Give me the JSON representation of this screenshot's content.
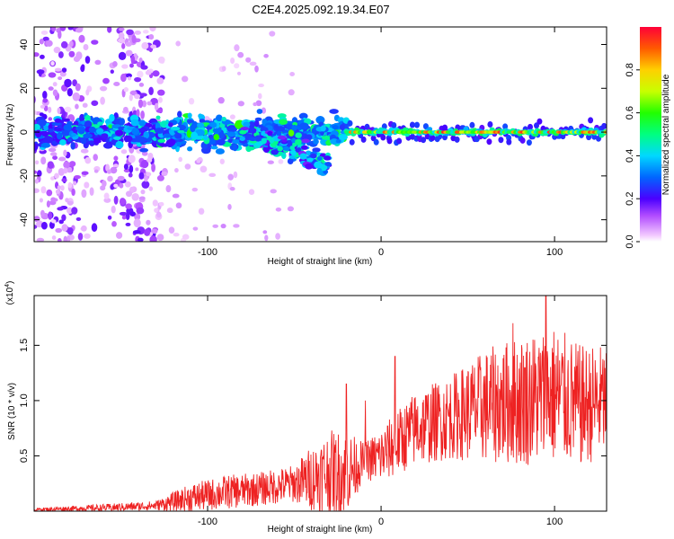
{
  "title": "C2E4.2025.092.19.34.E07",
  "colors": {
    "snr_line": "#ee2222",
    "axis": "#000000",
    "background": "#ffffff"
  },
  "chart_data": [
    {
      "type": "heatmap",
      "name": "spectrogram",
      "xlabel": "Height of straight line (km)",
      "ylabel": "Frequency (Hz)",
      "xlim": [
        -200,
        130
      ],
      "ylim": [
        -50,
        48
      ],
      "x_ticks": [
        -100,
        0,
        100
      ],
      "x_tick_labels": [
        "-100",
        "0",
        "100"
      ],
      "y_ticks": [
        -40,
        -20,
        0,
        20,
        40
      ],
      "y_tick_labels": [
        "-40",
        "-20",
        "0",
        "20",
        "40"
      ],
      "colorbar": {
        "label": "Normalized spectral amplitude",
        "range": [
          0,
          1
        ],
        "ticks": [
          0.0,
          0.2,
          0.4,
          0.6,
          0.8
        ],
        "tick_labels": [
          "0.0",
          "0.2",
          "0.4",
          "0.6",
          "0.8"
        ],
        "colormap": "rainbow (purple-blue-cyan-green-yellow-red)"
      },
      "features": {
        "scatter_columns_km": [
          -188,
          -142
        ],
        "scatter_amplitude": 0.15,
        "noisy_band": {
          "x_from": -200,
          "x_to": -20,
          "freq_center": 0,
          "freq_halfwidth": 6,
          "amplitude": [
            0.2,
            0.6
          ]
        },
        "descending_branch": {
          "x_from": -80,
          "x_to": -30,
          "freq_from": 0,
          "freq_to": -15
        },
        "tone": {
          "x_from": -20,
          "x_to": 130,
          "freq": 0,
          "amplitude": [
            0.4,
            0.95
          ]
        }
      }
    },
    {
      "type": "line",
      "name": "snr",
      "xlabel": "Height of straight line (km)",
      "ylabel": "SNR (10 * v/v)",
      "y_multiplier": "(x10^4)",
      "xlim": [
        -200,
        130
      ],
      "ylim": [
        0,
        19500
      ],
      "x_ticks": [
        -100,
        0,
        100
      ],
      "x_tick_labels": [
        "-100",
        "0",
        "100"
      ],
      "y_ticks": [
        5000,
        10000,
        15000
      ],
      "y_tick_labels": [
        "0.5",
        "1.0",
        "1.5"
      ],
      "series": [
        {
          "name": "SNR",
          "envelope_x": [
            -200,
            -160,
            -130,
            -110,
            -90,
            -70,
            -50,
            -40,
            -30,
            -20,
            -10,
            0,
            20,
            40,
            60,
            80,
            100,
            115,
            130
          ],
          "envelope_mean": [
            150,
            300,
            500,
            1200,
            1700,
            2000,
            2500,
            3000,
            3500,
            3500,
            4500,
            5000,
            7500,
            8500,
            9500,
            10000,
            10500,
            9500,
            10000
          ],
          "envelope_spread": [
            150,
            400,
            500,
            1500,
            1800,
            1800,
            2000,
            3500,
            4500,
            4500,
            2000,
            3000,
            4000,
            4500,
            6000,
            7000,
            7500,
            6500,
            6000
          ],
          "peaks": [
            {
              "x": 95,
              "y": 19500
            },
            {
              "x": 76,
              "y": 17000
            },
            {
              "x": 8,
              "y": 14000
            },
            {
              "x": -20,
              "y": 11500
            },
            {
              "x": -9,
              "y": 10000
            }
          ]
        }
      ]
    }
  ]
}
